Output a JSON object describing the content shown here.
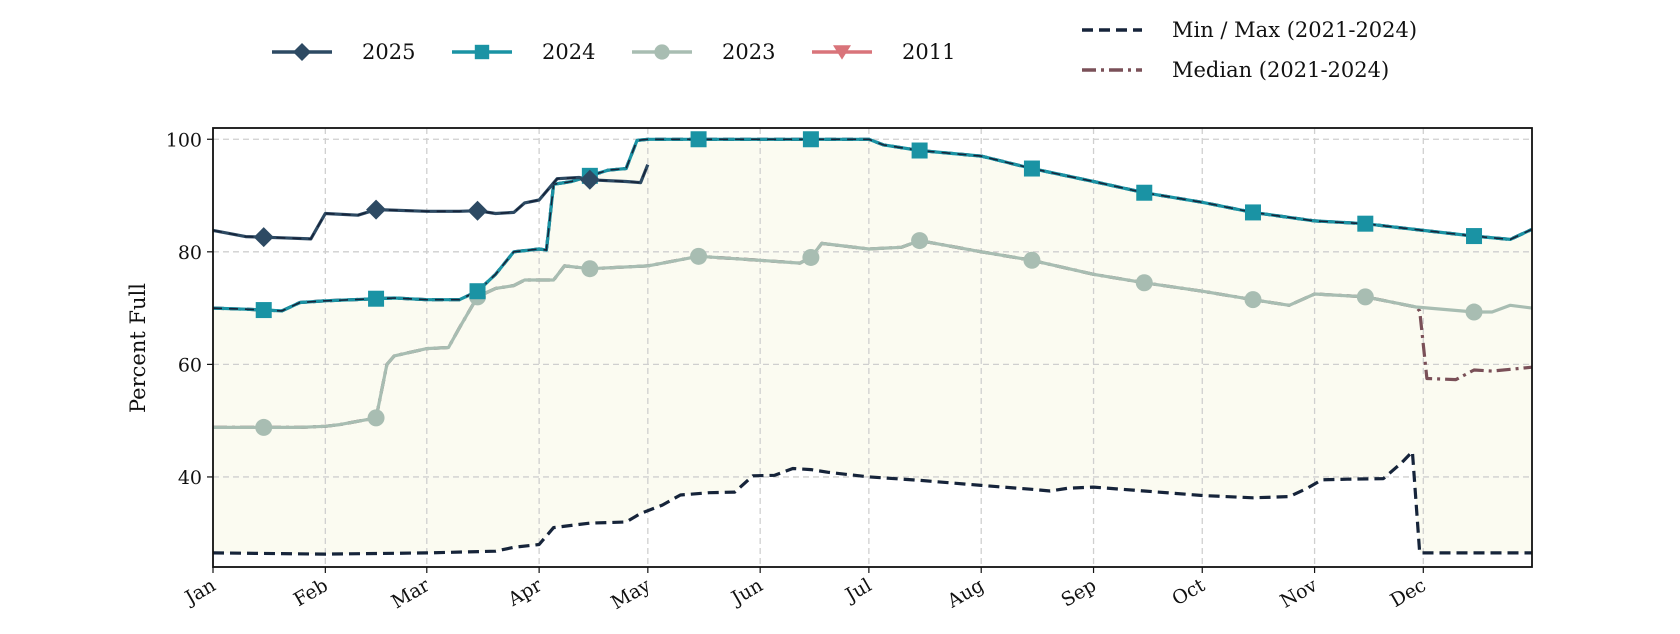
{
  "chart_data": {
    "type": "line",
    "title": "",
    "xlabel": "",
    "ylabel": "Percent Full",
    "ylim": [
      24,
      102
    ],
    "yticks": [
      40,
      60,
      80,
      100
    ],
    "x_domain": [
      "01-01",
      "12-31"
    ],
    "x_ticks": [
      {
        "label": "Jan",
        "date": "01-01"
      },
      {
        "label": "Feb",
        "date": "02-01"
      },
      {
        "label": "Mar",
        "date": "03-01"
      },
      {
        "label": "Apr",
        "date": "04-01"
      },
      {
        "label": "May",
        "date": "05-01"
      },
      {
        "label": "Jun",
        "date": "06-01"
      },
      {
        "label": "Jul",
        "date": "07-01"
      },
      {
        "label": "Aug",
        "date": "08-01"
      },
      {
        "label": "Sep",
        "date": "09-01"
      },
      {
        "label": "Oct",
        "date": "10-01"
      },
      {
        "label": "Nov",
        "date": "11-01"
      },
      {
        "label": "Dec",
        "date": "12-01"
      }
    ],
    "grid": true,
    "legend_position": "top",
    "range_band": {
      "fill": "#fbfbf1",
      "description": "area between Min and Max"
    },
    "series": [
      {
        "name": "Min / Max (2021-2024)",
        "legend_label": "Min / Max (2021-2024)",
        "color": "#16243a",
        "style": "dashed",
        "marker": "none",
        "min": [
          [
            "01-01",
            26.5
          ],
          [
            "02-01",
            26.3
          ],
          [
            "03-01",
            26.5
          ],
          [
            "03-20",
            26.8
          ],
          [
            "03-25",
            27.5
          ],
          [
            "04-01",
            28
          ],
          [
            "04-05",
            31
          ],
          [
            "04-15",
            31.8
          ],
          [
            "04-25",
            32
          ],
          [
            "04-29",
            33.5
          ],
          [
            "05-05",
            35
          ],
          [
            "05-10",
            36.8
          ],
          [
            "05-18",
            37.2
          ],
          [
            "05-25",
            37.3
          ],
          [
            "05-30",
            40.2
          ],
          [
            "06-05",
            40.3
          ],
          [
            "06-10",
            41.5
          ],
          [
            "06-15",
            41.3
          ],
          [
            "06-20",
            40.8
          ],
          [
            "07-01",
            40
          ],
          [
            "07-15",
            39.4
          ],
          [
            "08-01",
            38.5
          ],
          [
            "08-15",
            37.8
          ],
          [
            "08-20",
            37.5
          ],
          [
            "08-25",
            38
          ],
          [
            "09-01",
            38.2
          ],
          [
            "09-15",
            37.5
          ],
          [
            "10-01",
            36.7
          ],
          [
            "10-15",
            36.3
          ],
          [
            "10-25",
            36.5
          ],
          [
            "10-30",
            38
          ],
          [
            "11-03",
            39.5
          ],
          [
            "11-10",
            39.6
          ],
          [
            "11-20",
            39.7
          ],
          [
            "11-25",
            42.5
          ],
          [
            "11-28",
            44.5
          ],
          [
            "11-30",
            26.5
          ],
          [
            "12-31",
            26.5
          ]
        ],
        "max": [
          [
            "01-01",
            70
          ],
          [
            "01-10",
            69.8
          ],
          [
            "01-20",
            69.5
          ],
          [
            "01-25",
            71
          ],
          [
            "02-01",
            71.3
          ],
          [
            "02-20",
            71.8
          ],
          [
            "03-01",
            71.5
          ],
          [
            "03-10",
            71.5
          ],
          [
            "03-15",
            73
          ],
          [
            "03-20",
            76
          ],
          [
            "03-25",
            80
          ],
          [
            "04-01",
            80.5
          ],
          [
            "04-03",
            80.3
          ],
          [
            "04-05",
            92
          ],
          [
            "04-10",
            92.5
          ],
          [
            "04-20",
            94.5
          ],
          [
            "04-25",
            94.8
          ],
          [
            "04-28",
            99.8
          ],
          [
            "05-01",
            100
          ],
          [
            "06-01",
            100
          ],
          [
            "07-01",
            100
          ],
          [
            "07-05",
            99
          ],
          [
            "07-15",
            98
          ],
          [
            "08-01",
            97
          ],
          [
            "08-15",
            94.8
          ],
          [
            "09-01",
            92.5
          ],
          [
            "09-15",
            90.5
          ],
          [
            "10-01",
            88.8
          ],
          [
            "10-15",
            87
          ],
          [
            "11-01",
            85.5
          ],
          [
            "11-15",
            85
          ],
          [
            "12-01",
            83.8
          ],
          [
            "12-15",
            82.8
          ],
          [
            "12-25",
            82.2
          ],
          [
            "12-31",
            84
          ]
        ]
      },
      {
        "name": "Median (2021-2024)",
        "legend_label": "Median (2021-2024)",
        "color": "#7a5058",
        "style": "dashdot",
        "marker": "none",
        "points": [
          [
            "01-01",
            48.8
          ],
          [
            "01-15",
            48.8
          ],
          [
            "01-25",
            48.8
          ],
          [
            "02-01",
            49
          ],
          [
            "02-05",
            49.3
          ],
          [
            "02-15",
            50.5
          ],
          [
            "02-18",
            60
          ],
          [
            "02-20",
            61.5
          ],
          [
            "03-01",
            62.8
          ],
          [
            "03-07",
            63
          ],
          [
            "03-10",
            66.5
          ],
          [
            "03-15",
            72
          ],
          [
            "03-20",
            73.5
          ],
          [
            "03-25",
            74
          ],
          [
            "03-28",
            75
          ],
          [
            "04-05",
            75
          ],
          [
            "04-08",
            77.5
          ],
          [
            "04-15",
            77
          ],
          [
            "05-01",
            77.5
          ],
          [
            "05-15",
            79.2
          ],
          [
            "06-01",
            78.5
          ],
          [
            "06-12",
            78
          ],
          [
            "06-15",
            79
          ],
          [
            "06-18",
            81.5
          ],
          [
            "07-01",
            80.5
          ],
          [
            "07-10",
            80.8
          ],
          [
            "07-15",
            82
          ],
          [
            "08-01",
            80
          ],
          [
            "08-15",
            78.5
          ],
          [
            "09-01",
            76
          ],
          [
            "09-15",
            74.5
          ],
          [
            "10-01",
            73
          ],
          [
            "10-15",
            71.5
          ],
          [
            "10-25",
            70.5
          ],
          [
            "11-01",
            72.5
          ],
          [
            "11-15",
            72
          ],
          [
            "11-29",
            70.2
          ],
          [
            "11-30",
            69.5
          ],
          [
            "12-02",
            57.5
          ],
          [
            "12-10",
            57.3
          ],
          [
            "12-15",
            59
          ],
          [
            "12-20",
            58.8
          ],
          [
            "12-31",
            59.5
          ]
        ]
      },
      {
        "name": "2025",
        "legend_label": "2025",
        "color": "#2d4a63",
        "style": "solid",
        "marker": "diamond",
        "points": [
          [
            "01-01",
            83.8
          ],
          [
            "01-10",
            82.7
          ],
          [
            "01-20",
            82.5
          ],
          [
            "01-28",
            82.3
          ],
          [
            "02-01",
            86.8
          ],
          [
            "02-10",
            86.5
          ],
          [
            "02-15",
            87.5
          ],
          [
            "03-01",
            87.2
          ],
          [
            "03-10",
            87.2
          ],
          [
            "03-15",
            87.3
          ],
          [
            "03-20",
            86.8
          ],
          [
            "03-25",
            87.0
          ],
          [
            "03-28",
            88.7
          ],
          [
            "04-01",
            89.2
          ],
          [
            "04-06",
            93
          ],
          [
            "04-12",
            93.2
          ],
          [
            "04-15",
            92.8
          ],
          [
            "04-25",
            92.5
          ],
          [
            "04-29",
            92.3
          ],
          [
            "05-01",
            95.5
          ]
        ],
        "marker_dates": [
          "01-15",
          "02-15",
          "03-15",
          "04-15"
        ]
      },
      {
        "name": "2024",
        "legend_label": "2024",
        "color": "#1a93a4",
        "style": "solid",
        "marker": "square",
        "points": [
          [
            "01-01",
            70
          ],
          [
            "01-10",
            69.8
          ],
          [
            "01-20",
            69.5
          ],
          [
            "01-25",
            71
          ],
          [
            "02-01",
            71.3
          ],
          [
            "02-20",
            71.8
          ],
          [
            "03-01",
            71.5
          ],
          [
            "03-10",
            71.5
          ],
          [
            "03-15",
            73
          ],
          [
            "03-20",
            76
          ],
          [
            "03-25",
            80
          ],
          [
            "04-01",
            80.5
          ],
          [
            "04-03",
            80.3
          ],
          [
            "04-05",
            92
          ],
          [
            "04-10",
            92.5
          ],
          [
            "04-20",
            94.5
          ],
          [
            "04-25",
            94.8
          ],
          [
            "04-28",
            99.8
          ],
          [
            "05-01",
            100
          ],
          [
            "06-01",
            100
          ],
          [
            "07-01",
            100
          ],
          [
            "07-05",
            99
          ],
          [
            "07-15",
            98
          ],
          [
            "08-01",
            97
          ],
          [
            "08-15",
            94.8
          ],
          [
            "09-01",
            92.5
          ],
          [
            "09-15",
            90.5
          ],
          [
            "10-01",
            88.8
          ],
          [
            "10-15",
            87
          ],
          [
            "11-01",
            85.5
          ],
          [
            "11-15",
            85
          ],
          [
            "12-01",
            83.8
          ],
          [
            "12-15",
            82.8
          ],
          [
            "12-25",
            82.2
          ],
          [
            "12-31",
            84
          ]
        ],
        "marker_dates": [
          "01-15",
          "02-15",
          "03-15",
          "04-15",
          "05-15",
          "06-15",
          "07-15",
          "08-15",
          "09-15",
          "10-15",
          "11-15",
          "12-15"
        ]
      },
      {
        "name": "2023",
        "legend_label": "2023",
        "color": "#a8bdb2",
        "style": "solid",
        "marker": "circle",
        "points": [
          [
            "01-01",
            48.8
          ],
          [
            "01-15",
            48.8
          ],
          [
            "01-25",
            48.8
          ],
          [
            "02-01",
            49
          ],
          [
            "02-05",
            49.3
          ],
          [
            "02-15",
            50.5
          ],
          [
            "02-18",
            60
          ],
          [
            "02-20",
            61.5
          ],
          [
            "03-01",
            62.8
          ],
          [
            "03-07",
            63
          ],
          [
            "03-10",
            66.5
          ],
          [
            "03-15",
            72
          ],
          [
            "03-20",
            73.5
          ],
          [
            "03-25",
            74
          ],
          [
            "03-28",
            75
          ],
          [
            "04-05",
            75
          ],
          [
            "04-08",
            77.5
          ],
          [
            "04-15",
            77
          ],
          [
            "05-01",
            77.5
          ],
          [
            "05-15",
            79.2
          ],
          [
            "06-01",
            78.5
          ],
          [
            "06-12",
            78
          ],
          [
            "06-15",
            79
          ],
          [
            "06-18",
            81.5
          ],
          [
            "07-01",
            80.5
          ],
          [
            "07-10",
            80.8
          ],
          [
            "07-15",
            82
          ],
          [
            "08-01",
            80
          ],
          [
            "08-15",
            78.5
          ],
          [
            "09-01",
            76
          ],
          [
            "09-15",
            74.5
          ],
          [
            "10-01",
            73
          ],
          [
            "10-15",
            71.5
          ],
          [
            "10-25",
            70.5
          ],
          [
            "11-01",
            72.5
          ],
          [
            "11-15",
            72
          ],
          [
            "11-29",
            70.2
          ],
          [
            "12-15",
            69.3
          ],
          [
            "12-20",
            69.3
          ],
          [
            "12-25",
            70.5
          ],
          [
            "12-31",
            70
          ]
        ],
        "marker_dates": [
          "01-15",
          "02-15",
          "03-15",
          "04-15",
          "05-15",
          "06-15",
          "07-15",
          "08-15",
          "09-15",
          "10-15",
          "11-15",
          "12-15"
        ]
      },
      {
        "name": "2011",
        "legend_label": "2011",
        "color": "#d9747a",
        "style": "solid",
        "marker": "triangle-down",
        "points": []
      }
    ]
  }
}
